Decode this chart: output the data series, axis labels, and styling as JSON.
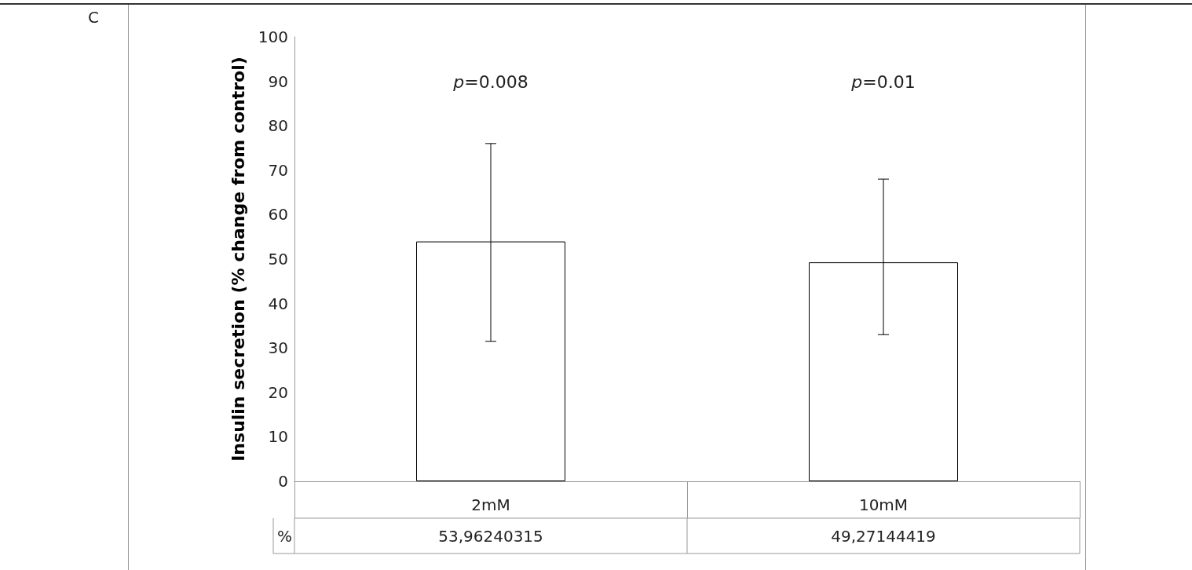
{
  "chart_data": {
    "type": "bar",
    "ylabel": "Insulin secretion (% change from control)",
    "categories": [
      "2mM",
      "10mM"
    ],
    "series": [
      {
        "name": "%",
        "color": "#ffffff",
        "values": [
          53.96240315,
          49.27144419
        ],
        "value_labels": [
          "53,96240315",
          "49,27144419"
        ],
        "errors": [
          [
            31.5,
            76
          ],
          [
            33,
            68
          ]
        ]
      }
    ],
    "ylim": [
      0,
      100
    ],
    "yticks": [
      0,
      10,
      20,
      30,
      40,
      50,
      60,
      70,
      80,
      90,
      100
    ],
    "grid": false,
    "legend": false,
    "annotations": [
      "C",
      "p=0.008",
      "p=0.01"
    ]
  }
}
